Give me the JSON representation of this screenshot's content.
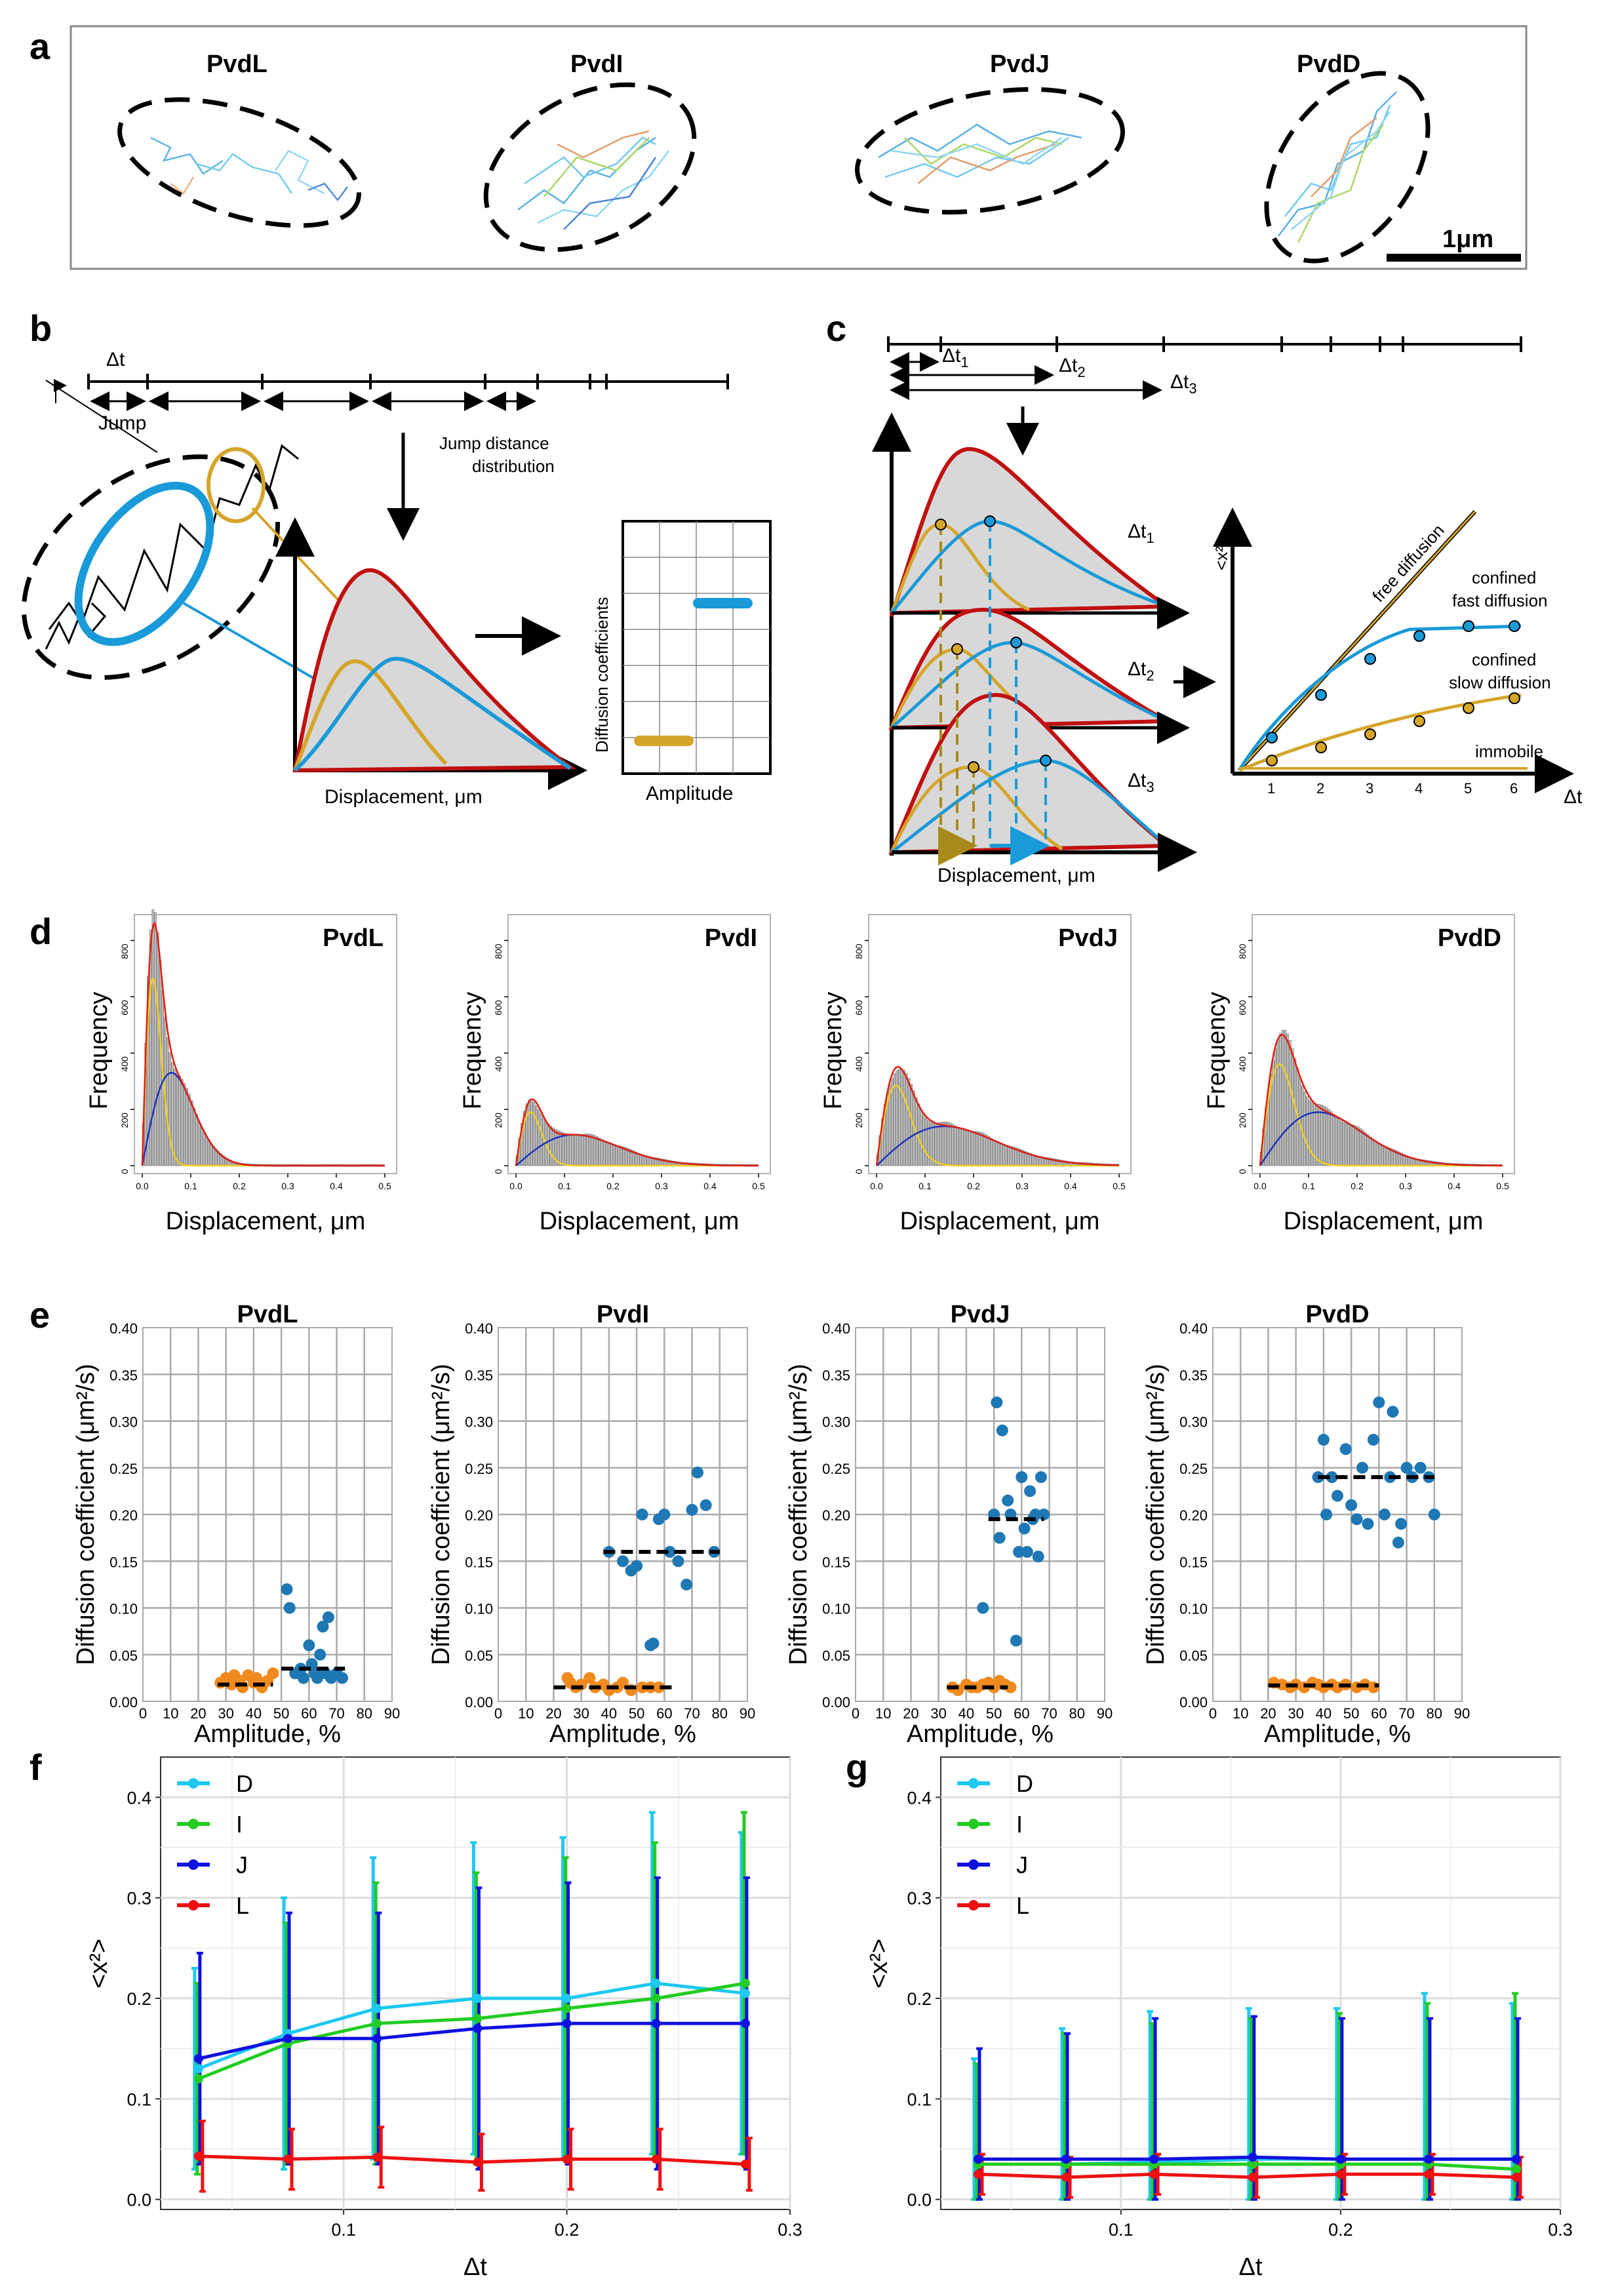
{
  "panel_labels": {
    "a": "a",
    "b": "b",
    "c": "c",
    "d": "d",
    "e": "e",
    "f": "f",
    "g": "g"
  },
  "panel_a": {
    "cells": [
      "PvdL",
      "PvdI",
      "PvdJ",
      "PvdD"
    ],
    "scale_bar": "1μm"
  },
  "panel_b": {
    "dt": "Δt",
    "jump": "Jump",
    "jdd": "Jump distance",
    "jdd2": "distribution",
    "xlabel": "Displacement, μm",
    "diff_coeff": "Diffusion coefficients",
    "amplitude": "Amplitude"
  },
  "panel_c": {
    "dt1": "Δt",
    "sub1": "1",
    "dt2": "Δt",
    "sub2": "2",
    "dt3": "Δt",
    "sub3": "3",
    "xlabel": "Displacement, μm",
    "msd_y": "<x²>",
    "msd_x": "Δt",
    "free": "free diffusion",
    "fast1": "confined",
    "fast2": "fast diffusion",
    "slow1": "confined",
    "slow2": "slow diffusion",
    "immobile": "immobile",
    "ticks": [
      "1",
      "2",
      "3",
      "4",
      "5",
      "6"
    ]
  },
  "panel_d": {
    "ylabel": "Frequency",
    "xlabel": "Displacement, μm",
    "yticks": [
      "0",
      "200",
      "400",
      "600",
      "800"
    ],
    "xticks": [
      "0.0",
      "0.1",
      "0.2",
      "0.3",
      "0.4",
      "0.5"
    ],
    "titles": [
      "PvdL",
      "PvdI",
      "PvdJ",
      "PvdD"
    ]
  },
  "panel_e": {
    "ylabel": "Diffusion coefficient (μm²/s)",
    "xlabel": "Amplitude, %",
    "yticks": [
      "0.00",
      "0.05",
      "0.10",
      "0.15",
      "0.20",
      "0.25",
      "0.30",
      "0.35",
      "0.40"
    ],
    "xticks": [
      "0",
      "10",
      "20",
      "30",
      "40",
      "50",
      "60",
      "70",
      "80",
      "90"
    ],
    "titles": [
      "PvdL",
      "PvdI",
      "PvdJ",
      "PvdD"
    ]
  },
  "panel_f": {
    "ylabel": "<x²>",
    "xlabel": "Δt",
    "yticks": [
      "0.0",
      "0.1",
      "0.2",
      "0.3",
      "0.4"
    ],
    "xticks": [
      "0.1",
      "0.2",
      "0.3"
    ],
    "legend": [
      "D",
      "I",
      "J",
      "L"
    ]
  },
  "colors": {
    "D": "#1ec8f0",
    "I": "#22cc22",
    "J": "#1010e0",
    "L": "#ee1010",
    "orange": "#f08a1e",
    "blueDot": "#1f77b4",
    "red": "#c01010",
    "blue": "#1a9ad8",
    "gold": "#d4a52a"
  },
  "chart_data": [
    {
      "type": "scatter",
      "title": "PvdL",
      "xlabel": "Amplitude, %",
      "ylabel": "Diffusion coefficient (μm²/s)",
      "xlim": [
        0,
        90
      ],
      "ylim": [
        0,
        0.4
      ],
      "orange": [
        [
          28,
          0.02
        ],
        [
          30,
          0.025
        ],
        [
          32,
          0.018
        ],
        [
          33,
          0.028
        ],
        [
          35,
          0.022
        ],
        [
          36,
          0.015
        ],
        [
          38,
          0.028
        ],
        [
          40,
          0.02
        ],
        [
          41,
          0.025
        ],
        [
          43,
          0.015
        ],
        [
          45,
          0.022
        ],
        [
          47,
          0.03
        ]
      ],
      "blue": [
        [
          52,
          0.12
        ],
        [
          53,
          0.1
        ],
        [
          55,
          0.03
        ],
        [
          57,
          0.035
        ],
        [
          58,
          0.025
        ],
        [
          60,
          0.06
        ],
        [
          61,
          0.04
        ],
        [
          62,
          0.03
        ],
        [
          63,
          0.025
        ],
        [
          64,
          0.05
        ],
        [
          65,
          0.08
        ],
        [
          66,
          0.03
        ],
        [
          67,
          0.09
        ],
        [
          68,
          0.025
        ],
        [
          70,
          0.03
        ],
        [
          72,
          0.025
        ]
      ],
      "mean_lines": [
        {
          "x": [
            27,
            47
          ],
          "y": 0.018
        },
        {
          "x": [
            50,
            73
          ],
          "y": 0.035
        }
      ]
    },
    {
      "type": "scatter",
      "title": "PvdI",
      "xlabel": "Amplitude, %",
      "ylabel": "Diffusion coefficient (μm²/s)",
      "xlim": [
        0,
        90
      ],
      "ylim": [
        0,
        0.4
      ],
      "orange": [
        [
          25,
          0.025
        ],
        [
          26,
          0.02
        ],
        [
          28,
          0.015
        ],
        [
          30,
          0.018
        ],
        [
          33,
          0.025
        ],
        [
          35,
          0.015
        ],
        [
          38,
          0.018
        ],
        [
          40,
          0.012
        ],
        [
          43,
          0.015
        ],
        [
          45,
          0.02
        ],
        [
          48,
          0.012
        ],
        [
          52,
          0.015
        ],
        [
          55,
          0.015
        ],
        [
          58,
          0.015
        ]
      ],
      "blue": [
        [
          40,
          0.16
        ],
        [
          45,
          0.15
        ],
        [
          48,
          0.14
        ],
        [
          50,
          0.145
        ],
        [
          52,
          0.2
        ],
        [
          55,
          0.06
        ],
        [
          56,
          0.062
        ],
        [
          58,
          0.195
        ],
        [
          60,
          0.2
        ],
        [
          62,
          0.16
        ],
        [
          65,
          0.15
        ],
        [
          68,
          0.125
        ],
        [
          70,
          0.205
        ],
        [
          72,
          0.245
        ],
        [
          75,
          0.21
        ],
        [
          78,
          0.16
        ]
      ],
      "mean_lines": [
        {
          "x": [
            20,
            63
          ],
          "y": 0.015
        },
        {
          "x": [
            38,
            80
          ],
          "y": 0.16
        }
      ]
    },
    {
      "type": "scatter",
      "title": "PvdJ",
      "xlabel": "Amplitude, %",
      "ylabel": "Diffusion coefficient (μm²/s)",
      "xlim": [
        0,
        90
      ],
      "ylim": [
        0,
        0.4
      ],
      "orange": [
        [
          35,
          0.015
        ],
        [
          37,
          0.012
        ],
        [
          40,
          0.018
        ],
        [
          42,
          0.015
        ],
        [
          44,
          0.015
        ],
        [
          46,
          0.018
        ],
        [
          48,
          0.02
        ],
        [
          50,
          0.015
        ],
        [
          52,
          0.022
        ],
        [
          54,
          0.018
        ],
        [
          56,
          0.015
        ]
      ],
      "blue": [
        [
          46,
          0.1
        ],
        [
          50,
          0.2
        ],
        [
          51,
          0.32
        ],
        [
          52,
          0.175
        ],
        [
          53,
          0.29
        ],
        [
          55,
          0.215
        ],
        [
          56,
          0.2
        ],
        [
          58,
          0.065
        ],
        [
          59,
          0.16
        ],
        [
          60,
          0.24
        ],
        [
          61,
          0.185
        ],
        [
          62,
          0.16
        ],
        [
          63,
          0.225
        ],
        [
          64,
          0.195
        ],
        [
          65,
          0.2
        ],
        [
          66,
          0.155
        ],
        [
          67,
          0.24
        ],
        [
          68,
          0.2
        ]
      ],
      "mean_lines": [
        {
          "x": [
            33,
            55
          ],
          "y": 0.015
        },
        {
          "x": [
            48,
            68
          ],
          "y": 0.195
        }
      ]
    },
    {
      "type": "scatter",
      "title": "PvdD",
      "xlabel": "Amplitude, %",
      "ylabel": "Diffusion coefficient (μm²/s)",
      "xlim": [
        0,
        90
      ],
      "ylim": [
        0,
        0.4
      ],
      "orange": [
        [
          22,
          0.02
        ],
        [
          25,
          0.018
        ],
        [
          28,
          0.015
        ],
        [
          30,
          0.018
        ],
        [
          33,
          0.015
        ],
        [
          36,
          0.02
        ],
        [
          38,
          0.018
        ],
        [
          40,
          0.015
        ],
        [
          43,
          0.018
        ],
        [
          45,
          0.015
        ],
        [
          48,
          0.018
        ],
        [
          52,
          0.015
        ],
        [
          55,
          0.018
        ],
        [
          58,
          0.015
        ]
      ],
      "blue": [
        [
          38,
          0.24
        ],
        [
          40,
          0.28
        ],
        [
          41,
          0.2
        ],
        [
          43,
          0.24
        ],
        [
          45,
          0.22
        ],
        [
          48,
          0.27
        ],
        [
          50,
          0.21
        ],
        [
          52,
          0.195
        ],
        [
          54,
          0.25
        ],
        [
          56,
          0.19
        ],
        [
          58,
          0.28
        ],
        [
          60,
          0.32
        ],
        [
          62,
          0.2
        ],
        [
          64,
          0.24
        ],
        [
          65,
          0.31
        ],
        [
          67,
          0.17
        ],
        [
          68,
          0.19
        ],
        [
          70,
          0.25
        ],
        [
          72,
          0.24
        ],
        [
          75,
          0.25
        ],
        [
          78,
          0.24
        ],
        [
          80,
          0.2
        ]
      ],
      "mean_lines": [
        {
          "x": [
            20,
            60
          ],
          "y": 0.017
        },
        {
          "x": [
            38,
            80
          ],
          "y": 0.24
        }
      ]
    },
    {
      "type": "line",
      "title": "f",
      "xlabel": "Δt",
      "ylabel": "<x²>",
      "xlim": [
        0.018,
        0.3
      ],
      "ylim": [
        -0.01,
        0.44
      ],
      "x": [
        0.035,
        0.075,
        0.115,
        0.16,
        0.2,
        0.24,
        0.28
      ],
      "series": [
        {
          "name": "D",
          "values": [
            0.13,
            0.165,
            0.19,
            0.2,
            0.2,
            0.215,
            0.205
          ],
          "err": [
            0.1,
            0.135,
            0.15,
            0.155,
            0.16,
            0.17,
            0.16
          ]
        },
        {
          "name": "I",
          "values": [
            0.12,
            0.155,
            0.175,
            0.18,
            0.19,
            0.2,
            0.215
          ],
          "err": [
            0.095,
            0.12,
            0.14,
            0.145,
            0.15,
            0.155,
            0.17
          ]
        },
        {
          "name": "J",
          "values": [
            0.14,
            0.16,
            0.16,
            0.17,
            0.175,
            0.175,
            0.175
          ],
          "err": [
            0.105,
            0.125,
            0.125,
            0.14,
            0.14,
            0.145,
            0.145
          ]
        },
        {
          "name": "L",
          "values": [
            0.043,
            0.04,
            0.042,
            0.037,
            0.04,
            0.04,
            0.035
          ],
          "err": [
            0.035,
            0.03,
            0.03,
            0.028,
            0.03,
            0.03,
            0.026
          ]
        }
      ]
    },
    {
      "type": "line",
      "title": "g",
      "xlabel": "Δt",
      "ylabel": "<x²>",
      "xlim": [
        0.018,
        0.3
      ],
      "ylim": [
        -0.01,
        0.44
      ],
      "x": [
        0.035,
        0.075,
        0.115,
        0.16,
        0.2,
        0.24,
        0.28
      ],
      "series": [
        {
          "name": "D",
          "values": [
            0.035,
            0.035,
            0.037,
            0.04,
            0.04,
            0.04,
            0.04
          ],
          "err": [
            0.105,
            0.135,
            0.15,
            0.15,
            0.15,
            0.165,
            0.155
          ]
        },
        {
          "name": "I",
          "values": [
            0.035,
            0.035,
            0.035,
            0.035,
            0.035,
            0.035,
            0.03
          ],
          "err": [
            0.1,
            0.13,
            0.14,
            0.145,
            0.15,
            0.16,
            0.175
          ]
        },
        {
          "name": "J",
          "values": [
            0.04,
            0.04,
            0.04,
            0.042,
            0.04,
            0.04,
            0.04
          ],
          "err": [
            0.11,
            0.125,
            0.14,
            0.14,
            0.14,
            0.14,
            0.14
          ]
        },
        {
          "name": "L",
          "values": [
            0.025,
            0.022,
            0.025,
            0.022,
            0.025,
            0.025,
            0.022
          ],
          "err": [
            0.02,
            0.02,
            0.02,
            0.02,
            0.02,
            0.02,
            0.02
          ]
        }
      ]
    }
  ]
}
